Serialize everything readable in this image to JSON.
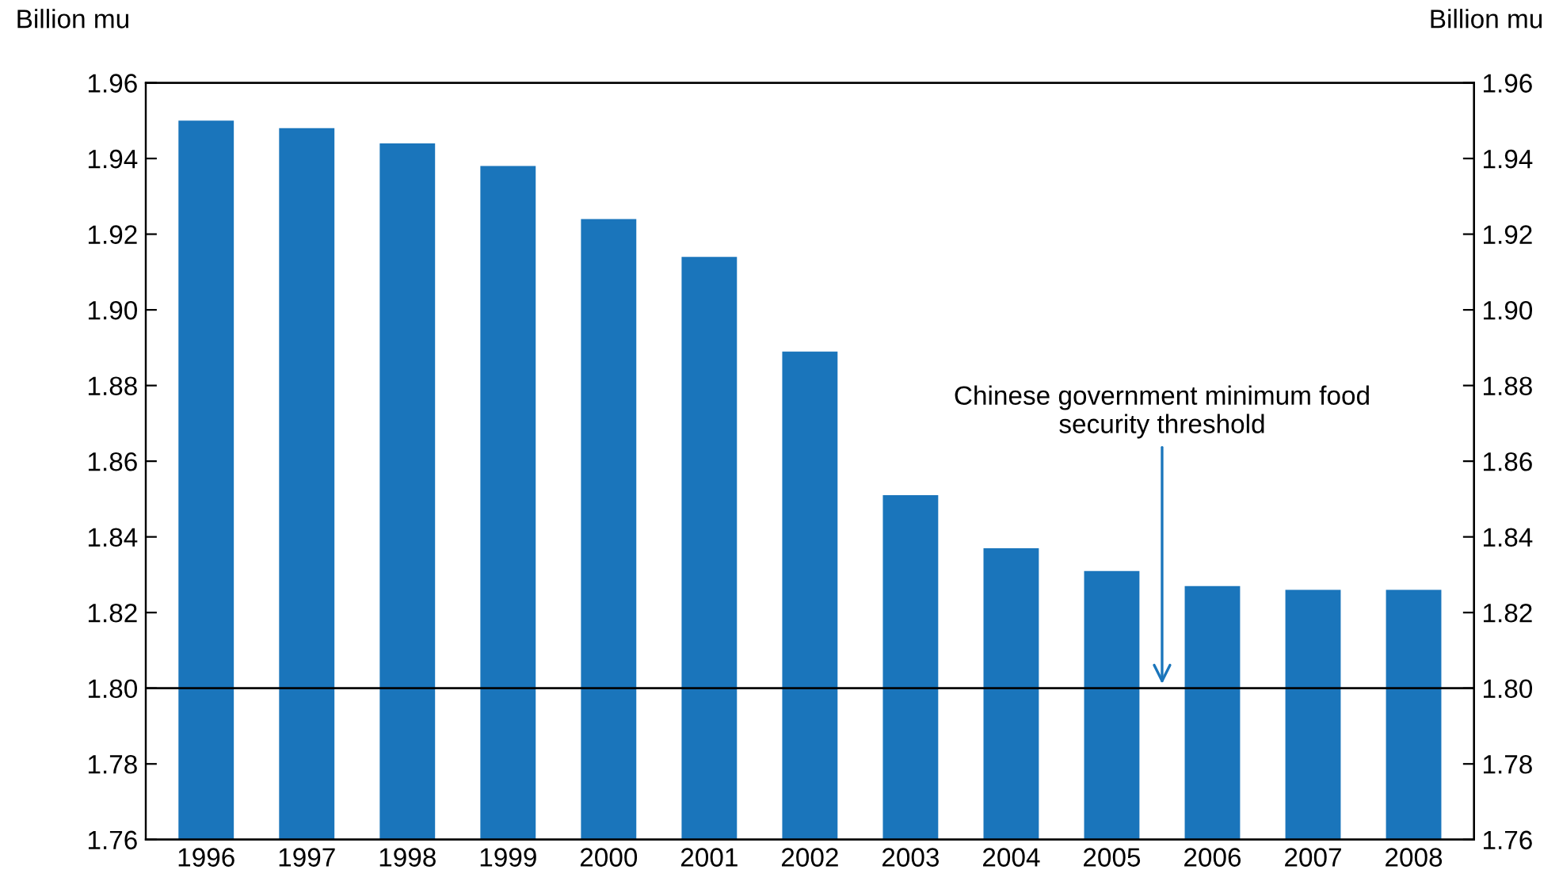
{
  "chart_data": {
    "type": "bar",
    "ylabel": "Billion mu",
    "y2label": "Billion mu",
    "categories": [
      "1996",
      "1997",
      "1998",
      "1999",
      "2000",
      "2001",
      "2002",
      "2003",
      "2004",
      "2005",
      "2006",
      "2007",
      "2008"
    ],
    "values": [
      1.95,
      1.948,
      1.944,
      1.938,
      1.924,
      1.914,
      1.889,
      1.851,
      1.837,
      1.831,
      1.827,
      1.826,
      1.826
    ],
    "color": "#1a75bb",
    "ylim": [
      1.76,
      1.96
    ],
    "yticks": [
      1.76,
      1.78,
      {
        "value": 1.8,
        "label": "1.80"
      },
      1.82,
      1.84,
      1.86,
      1.88,
      {
        "value": 1.9,
        "label": "1.90"
      },
      1.92,
      1.94,
      1.96
    ],
    "y2lim": [
      1.76,
      1.96
    ],
    "y2ticks": [
      1.76,
      1.78,
      {
        "value": 1.8,
        "label": "1.80"
      },
      1.82,
      1.84,
      1.86,
      1.88,
      {
        "value": 1.9,
        "label": "1.90"
      },
      1.92,
      1.94,
      1.96
    ],
    "ref_lines": [
      {
        "axis": "y",
        "value": 1.8,
        "label": "Chinese government minimum food\nsecurity threshold",
        "color": "#000000"
      }
    ],
    "grid": false,
    "legend": false
  }
}
